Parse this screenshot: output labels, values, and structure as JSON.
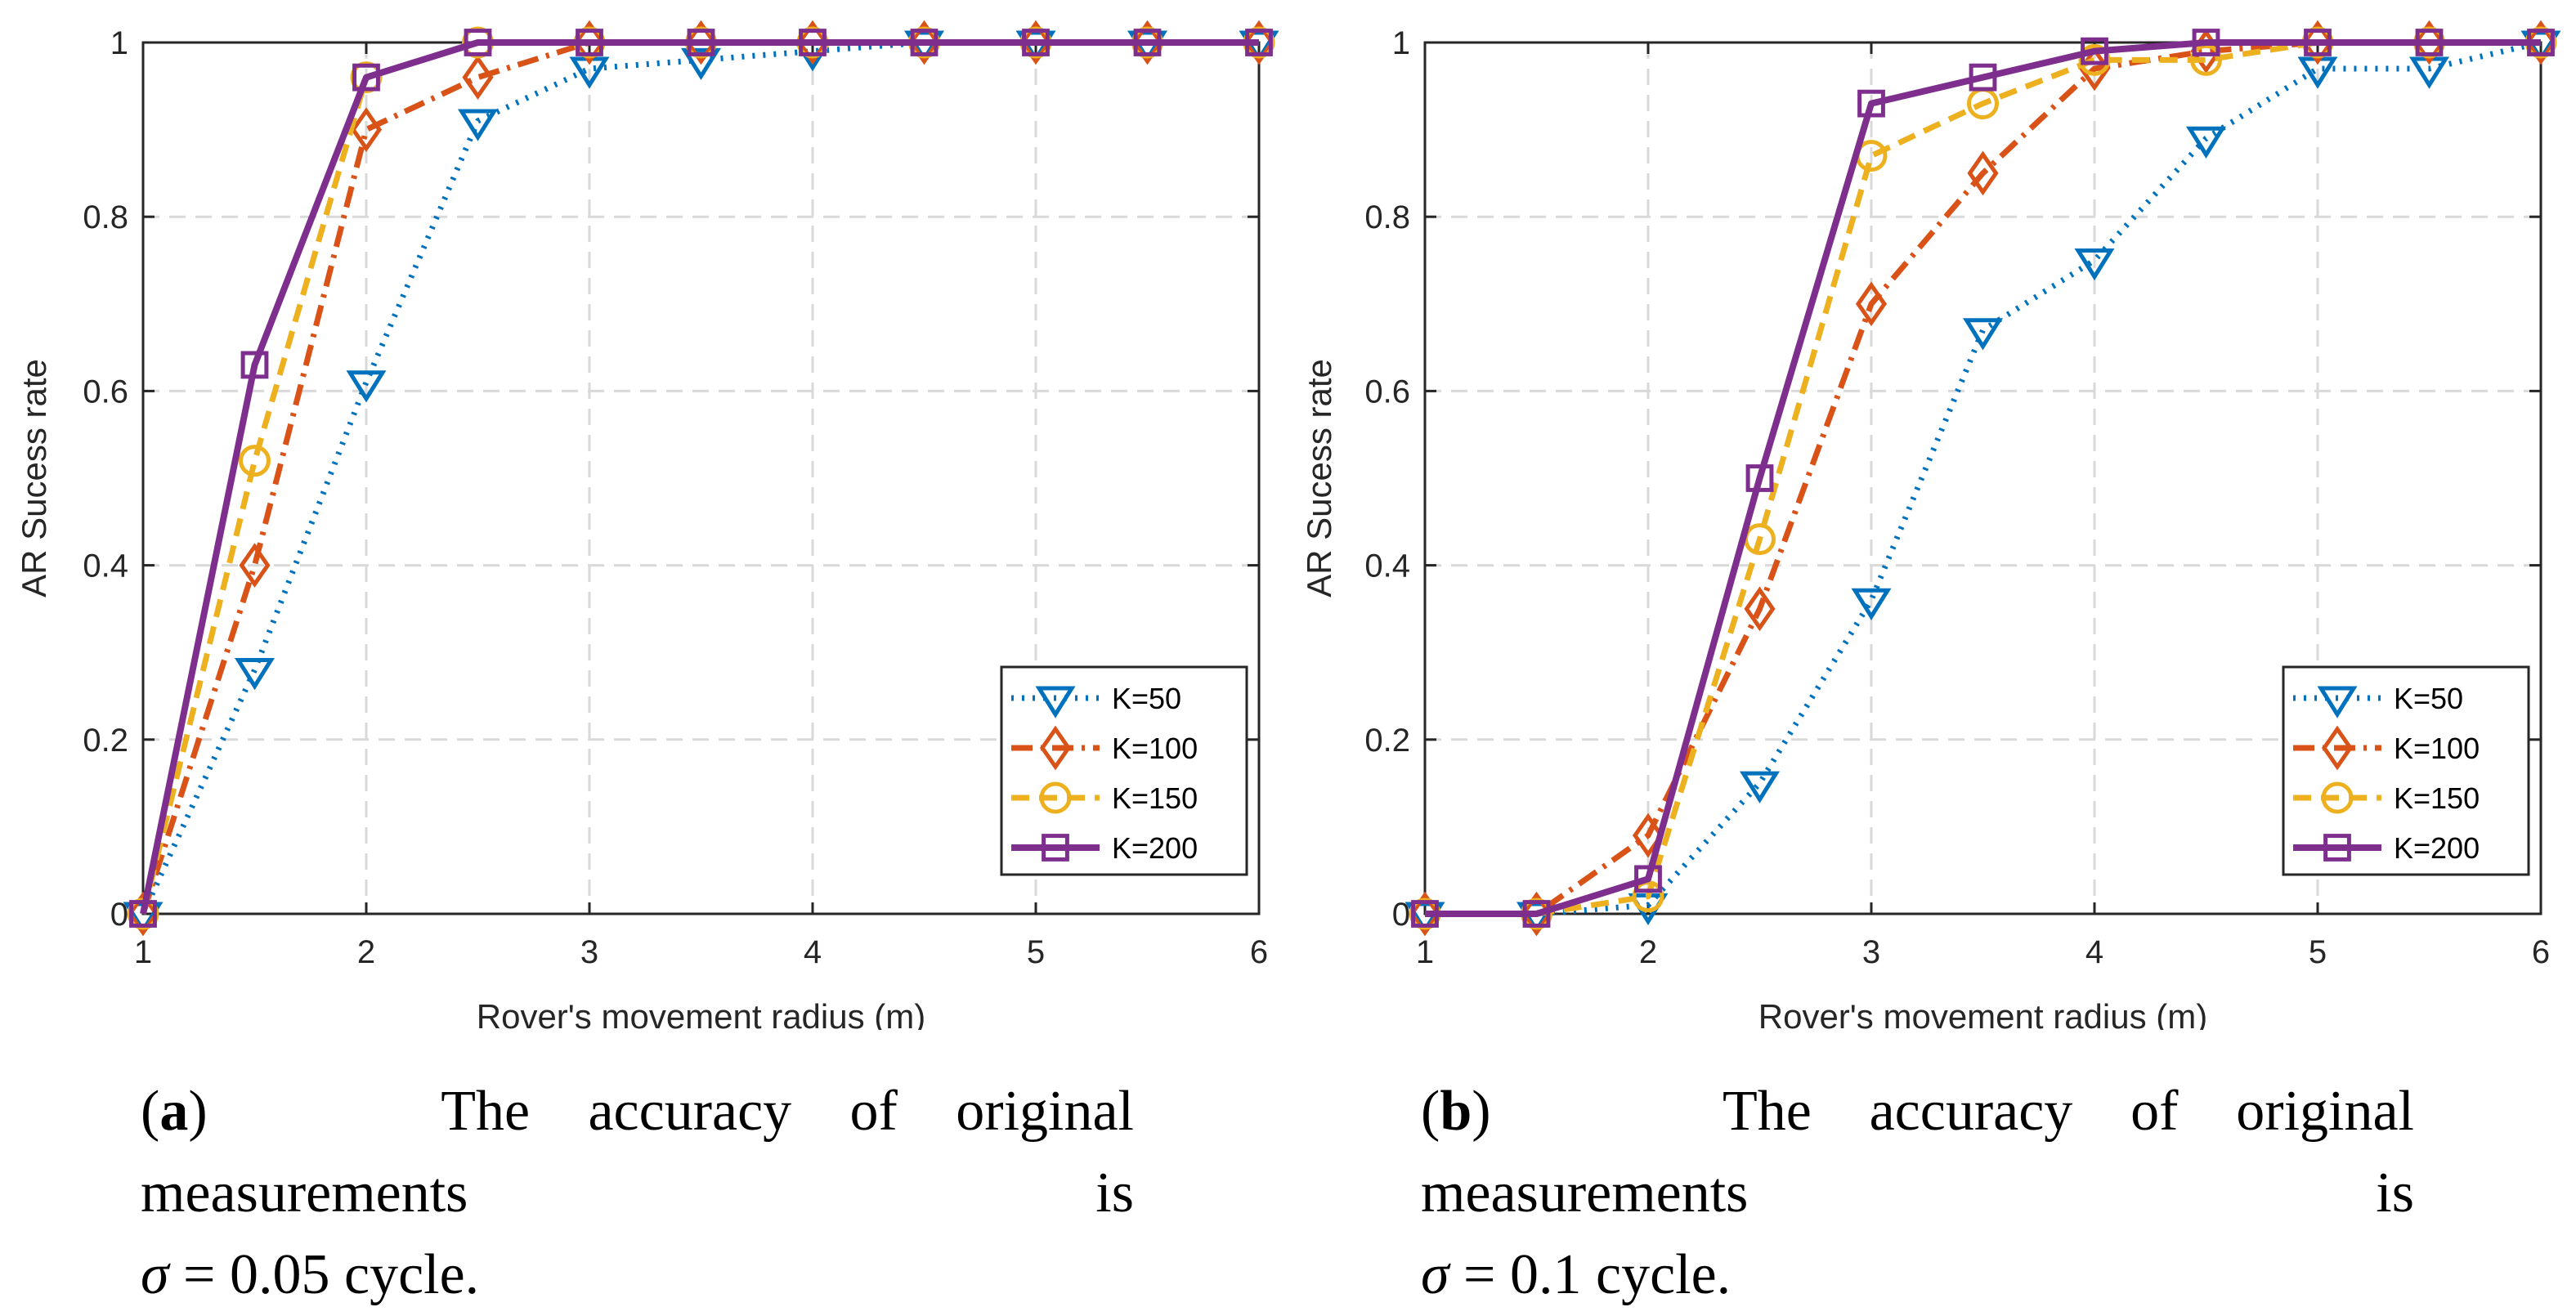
{
  "colors": {
    "K50": "#0072BD",
    "K100": "#D95319",
    "K150": "#EDB120",
    "K200": "#7E2F8E",
    "grid": "#d9d9d9",
    "axis": "#262626"
  },
  "chart_data": [
    {
      "type": "line",
      "xlabel": "Rover's movement radius (m)",
      "ylabel": "AR Sucess rate",
      "xlim": [
        1,
        6
      ],
      "ylim": [
        0,
        1
      ],
      "xticks": [
        "1",
        "2",
        "3",
        "4",
        "5",
        "6"
      ],
      "yticks": [
        "0",
        "0.2",
        "0.4",
        "0.6",
        "0.8",
        "1"
      ],
      "grid": true,
      "legend_position": "bottom-right",
      "x": [
        1,
        1.5,
        2,
        2.5,
        3,
        3.5,
        4,
        4.5,
        5,
        5.5,
        6
      ],
      "series": [
        {
          "name": "K=50",
          "style": "dotted",
          "marker": "triangle-down",
          "values": [
            0,
            0.28,
            0.61,
            0.91,
            0.97,
            0.98,
            0.99,
            1,
            1,
            1,
            1
          ]
        },
        {
          "name": "K=100",
          "style": "dashdot",
          "marker": "diamond",
          "values": [
            0,
            0.4,
            0.9,
            0.96,
            1,
            1,
            1,
            1,
            1,
            1,
            1
          ]
        },
        {
          "name": "K=150",
          "style": "dashed",
          "marker": "circle",
          "values": [
            0,
            0.52,
            0.96,
            1,
            1,
            1,
            1,
            1,
            1,
            1,
            1
          ]
        },
        {
          "name": "K=200",
          "style": "solid",
          "marker": "square",
          "values": [
            0,
            0.63,
            0.96,
            1,
            1,
            1,
            1,
            1,
            1,
            1,
            1
          ]
        }
      ],
      "caption": {
        "label": "a",
        "text": "The accuracy of original measurements is",
        "symbol": "σ",
        "equals": " = ",
        "value": "0.05",
        "unit": " cycle."
      }
    },
    {
      "type": "line",
      "xlabel": "Rover's movement radius (m)",
      "ylabel": "AR Sucess rate",
      "xlim": [
        1,
        6
      ],
      "ylim": [
        0,
        1
      ],
      "xticks": [
        "1",
        "2",
        "3",
        "4",
        "5",
        "6"
      ],
      "yticks": [
        "0",
        "0.2",
        "0.4",
        "0.6",
        "0.8",
        "1"
      ],
      "grid": true,
      "legend_position": "bottom-right",
      "x": [
        1,
        1.5,
        2,
        2.5,
        3,
        3.5,
        4,
        4.5,
        5,
        5.5,
        6
      ],
      "series": [
        {
          "name": "K=50",
          "style": "dotted",
          "marker": "triangle-down",
          "values": [
            0,
            0,
            0.01,
            0.15,
            0.36,
            0.67,
            0.75,
            0.89,
            0.97,
            0.97,
            1
          ]
        },
        {
          "name": "K=100",
          "style": "dashdot",
          "marker": "diamond",
          "values": [
            0,
            0,
            0.09,
            0.35,
            0.7,
            0.85,
            0.97,
            0.99,
            1,
            1,
            1
          ]
        },
        {
          "name": "K=150",
          "style": "dashed",
          "marker": "circle",
          "values": [
            0,
            0,
            0.02,
            0.43,
            0.87,
            0.93,
            0.98,
            0.98,
            1,
            1,
            1
          ]
        },
        {
          "name": "K=200",
          "style": "solid",
          "marker": "square",
          "values": [
            0,
            0,
            0.04,
            0.5,
            0.93,
            0.96,
            0.99,
            1,
            1,
            1,
            1
          ]
        }
      ],
      "caption": {
        "label": "b",
        "text": "The accuracy of original measurements is",
        "symbol": "σ",
        "equals": " = ",
        "value": "0.1",
        "unit": " cycle."
      }
    }
  ]
}
